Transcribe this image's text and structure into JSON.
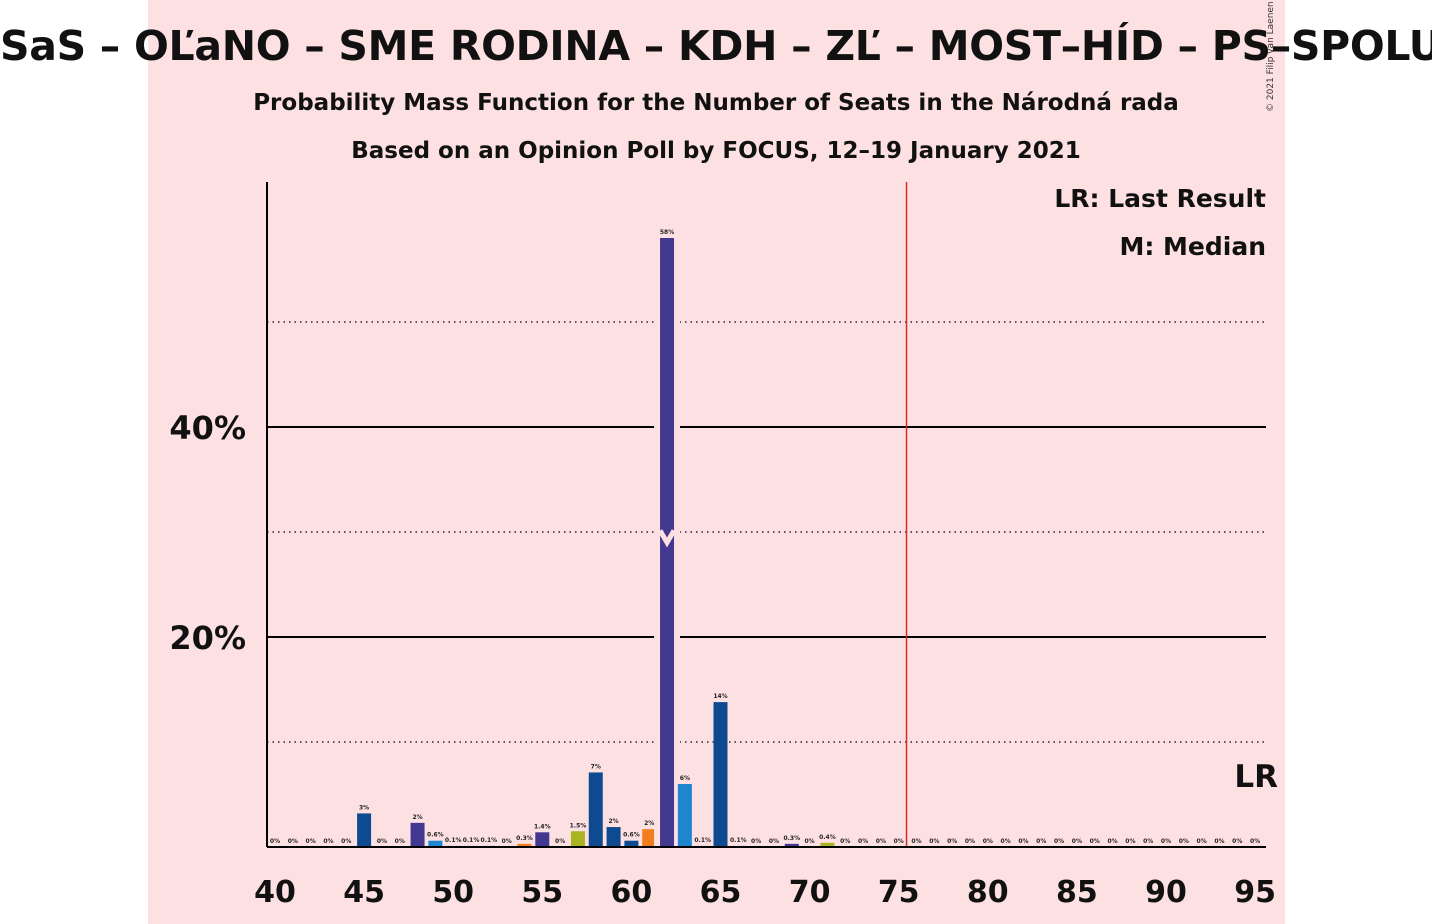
{
  "header": {
    "title": "SaS – OĽaNO – SME RODINA – KDH – ZĽ – MOST–HÍD – PS–SPOLU",
    "subtitle1": "Probability Mass Function for the Number of Seats in the Národná rada",
    "subtitle2": "Based on an Opinion Poll by FOCUS, 12–19 January 2021",
    "copyright": "© 2021 Filip van Laenen"
  },
  "legend": {
    "lr": "LR: Last Result",
    "m": "M: Median"
  },
  "chart_data": {
    "type": "bar",
    "xlim": [
      40,
      95
    ],
    "ylim": [
      0,
      60
    ],
    "x_ticks": [
      "40",
      "45",
      "50",
      "55",
      "60",
      "65",
      "70",
      "75",
      "80",
      "85",
      "90",
      "95"
    ],
    "y_ticks_labeled": [
      "20%",
      "40%"
    ],
    "y_tick_values_labeled": [
      20,
      40
    ],
    "y_gridlines_major": [
      20,
      40
    ],
    "y_gridlines_minor": [
      10,
      30,
      50
    ],
    "grid": true,
    "last_result_seats": 76,
    "last_result_label": "LR",
    "median_seats": 62,
    "colors": {
      "purple": "#43388f",
      "navy": "#0d4a8f",
      "blue": "#1d86cf",
      "orange": "#f07d1e",
      "lime": "#a8b520",
      "lr_line": "#d42c2c"
    },
    "bars": [
      {
        "x": 40,
        "value": 0,
        "label": "0%",
        "color": "navy"
      },
      {
        "x": 41,
        "value": 0,
        "label": "0%",
        "color": "navy"
      },
      {
        "x": 42,
        "value": 0,
        "label": "0%",
        "color": "navy"
      },
      {
        "x": 43,
        "value": 0,
        "label": "0%",
        "color": "navy"
      },
      {
        "x": 44,
        "value": 0,
        "label": "0%",
        "color": "navy"
      },
      {
        "x": 45,
        "value": 3.2,
        "label": "3%",
        "color": "navy"
      },
      {
        "x": 46,
        "value": 0,
        "label": "0%",
        "color": "navy"
      },
      {
        "x": 47,
        "value": 0,
        "label": "0%",
        "color": "navy"
      },
      {
        "x": 48,
        "value": 2.3,
        "label": "2%",
        "color": "purple"
      },
      {
        "x": 49,
        "value": 0.6,
        "label": "0.6%",
        "color": "blue"
      },
      {
        "x": 50,
        "value": 0.1,
        "label": "0.1%",
        "color": "navy"
      },
      {
        "x": 51,
        "value": 0.1,
        "label": "0.1%",
        "color": "navy"
      },
      {
        "x": 52,
        "value": 0.1,
        "label": "0.1%",
        "color": "navy"
      },
      {
        "x": 53,
        "value": 0,
        "label": "0%",
        "color": "navy"
      },
      {
        "x": 54,
        "value": 0.3,
        "label": "0.3%",
        "color": "orange"
      },
      {
        "x": 55,
        "value": 1.4,
        "label": "1.4%",
        "color": "purple"
      },
      {
        "x": 56,
        "value": 0,
        "label": "0%",
        "color": "navy"
      },
      {
        "x": 57,
        "value": 1.5,
        "label": "1.5%",
        "color": "lime"
      },
      {
        "x": 58,
        "value": 7.1,
        "label": "7%",
        "color": "navy"
      },
      {
        "x": 59,
        "value": 1.9,
        "label": "2%",
        "color": "navy"
      },
      {
        "x": 60,
        "value": 0.6,
        "label": "0.6%",
        "color": "navy"
      },
      {
        "x": 61,
        "value": 1.7,
        "label": "2%",
        "color": "orange"
      },
      {
        "x": 62,
        "value": 58,
        "label": "58%",
        "color": "purple"
      },
      {
        "x": 63,
        "value": 6.0,
        "label": "6%",
        "color": "blue"
      },
      {
        "x": 64,
        "value": 0.1,
        "label": "0.1%",
        "color": "navy"
      },
      {
        "x": 65,
        "value": 13.8,
        "label": "14%",
        "color": "navy"
      },
      {
        "x": 66,
        "value": 0.1,
        "label": "0.1%",
        "color": "navy"
      },
      {
        "x": 67,
        "value": 0,
        "label": "0%",
        "color": "navy"
      },
      {
        "x": 68,
        "value": 0,
        "label": "0%",
        "color": "navy"
      },
      {
        "x": 69,
        "value": 0.3,
        "label": "0.3%",
        "color": "purple"
      },
      {
        "x": 70,
        "value": 0,
        "label": "0%",
        "color": "navy"
      },
      {
        "x": 71,
        "value": 0.4,
        "label": "0.4%",
        "color": "lime"
      },
      {
        "x": 72,
        "value": 0,
        "label": "0%",
        "color": "navy"
      },
      {
        "x": 73,
        "value": 0,
        "label": "0%",
        "color": "navy"
      },
      {
        "x": 74,
        "value": 0,
        "label": "0%",
        "color": "navy"
      },
      {
        "x": 75,
        "value": 0,
        "label": "0%",
        "color": "navy"
      },
      {
        "x": 76,
        "value": 0,
        "label": "0%",
        "color": "navy"
      },
      {
        "x": 77,
        "value": 0,
        "label": "0%",
        "color": "navy"
      },
      {
        "x": 78,
        "value": 0,
        "label": "0%",
        "color": "navy"
      },
      {
        "x": 79,
        "value": 0,
        "label": "0%",
        "color": "navy"
      },
      {
        "x": 80,
        "value": 0,
        "label": "0%",
        "color": "navy"
      },
      {
        "x": 81,
        "value": 0,
        "label": "0%",
        "color": "navy"
      },
      {
        "x": 82,
        "value": 0,
        "label": "0%",
        "color": "navy"
      },
      {
        "x": 83,
        "value": 0,
        "label": "0%",
        "color": "navy"
      },
      {
        "x": 84,
        "value": 0,
        "label": "0%",
        "color": "navy"
      },
      {
        "x": 85,
        "value": 0,
        "label": "0%",
        "color": "navy"
      },
      {
        "x": 86,
        "value": 0,
        "label": "0%",
        "color": "navy"
      },
      {
        "x": 87,
        "value": 0,
        "label": "0%",
        "color": "navy"
      },
      {
        "x": 88,
        "value": 0,
        "label": "0%",
        "color": "navy"
      },
      {
        "x": 89,
        "value": 0,
        "label": "0%",
        "color": "navy"
      },
      {
        "x": 90,
        "value": 0,
        "label": "0%",
        "color": "navy"
      },
      {
        "x": 91,
        "value": 0,
        "label": "0%",
        "color": "navy"
      },
      {
        "x": 92,
        "value": 0,
        "label": "0%",
        "color": "navy"
      },
      {
        "x": 93,
        "value": 0,
        "label": "0%",
        "color": "navy"
      },
      {
        "x": 94,
        "value": 0,
        "label": "0%",
        "color": "navy"
      },
      {
        "x": 95,
        "value": 0,
        "label": "0%",
        "color": "navy"
      }
    ]
  }
}
